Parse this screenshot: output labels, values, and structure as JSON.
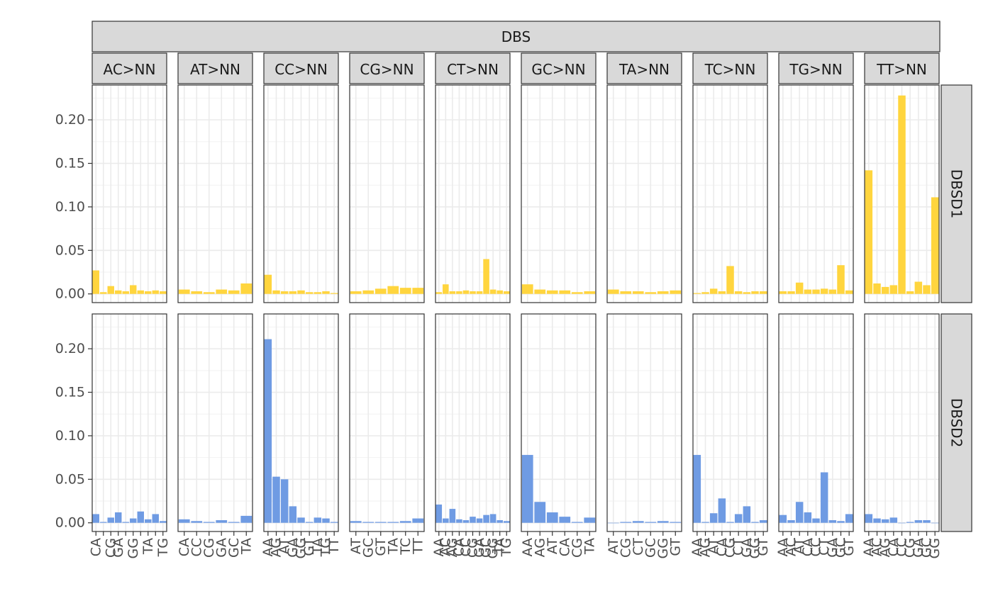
{
  "chart_data": {
    "type": "bar",
    "title": "",
    "xlabel": "",
    "ylabel": "",
    "ylim": [
      -0.01,
      0.24
    ],
    "y_ticks": [
      "0.00",
      "0.05",
      "0.10",
      "0.15",
      "0.20"
    ],
    "y_tick_values": [
      0,
      0.05,
      0.1,
      0.15,
      0.2
    ],
    "top_strip": "DBS",
    "grid": true,
    "colors": {
      "DBSD1": "#FFD53E",
      "DBSD2": "#6F9BE3"
    },
    "groups": [
      {
        "label": "AC>NN",
        "categories": [
          "CA",
          "CC",
          "CG",
          "GA",
          "GC",
          "GG",
          "GT",
          "TA",
          "TC",
          "TG"
        ],
        "x_tick_labels": [
          "CA",
          "CG",
          "GA",
          "GG",
          "TA",
          "TG"
        ]
      },
      {
        "label": "AT>NN",
        "categories": [
          "CA",
          "CC",
          "CG",
          "GA",
          "GC",
          "TA"
        ],
        "x_tick_labels": [
          "CA",
          "CC",
          "CG",
          "GA",
          "GC",
          "TA"
        ]
      },
      {
        "label": "CC>NN",
        "categories": [
          "AA",
          "AG",
          "AT",
          "GA",
          "GG",
          "GT",
          "TA",
          "TG",
          "TT"
        ],
        "x_tick_labels": [
          "AA",
          "AG",
          "AT",
          "GA",
          "GG",
          "GT",
          "TA",
          "TG",
          "TT"
        ]
      },
      {
        "label": "CG>NN",
        "categories": [
          "AT",
          "GC",
          "GT",
          "TA",
          "TC",
          "TT"
        ],
        "x_tick_labels": [
          "AT",
          "GC",
          "GT",
          "TA",
          "TC",
          "TT"
        ]
      },
      {
        "label": "CT>NN",
        "categories": [
          "AA",
          "AC",
          "AG",
          "CA",
          "CC",
          "CG",
          "GA",
          "GC",
          "GG",
          "TA",
          "TG"
        ],
        "x_tick_labels": [
          "AA",
          "AC",
          "AG",
          "CA",
          "CC",
          "CG",
          "GA",
          "GC",
          "GG",
          "TA",
          "TG"
        ]
      },
      {
        "label": "GC>NN",
        "categories": [
          "AA",
          "AG",
          "AT",
          "CA",
          "CG",
          "TA"
        ],
        "x_tick_labels": [
          "AA",
          "AG",
          "AT",
          "CA",
          "CG",
          "TA"
        ]
      },
      {
        "label": "TA>NN",
        "categories": [
          "AT",
          "CG",
          "CT",
          "GC",
          "GG",
          "GT"
        ],
        "x_tick_labels": [
          "AT",
          "CG",
          "CT",
          "GC",
          "GG",
          "GT"
        ]
      },
      {
        "label": "TC>NN",
        "categories": [
          "AA",
          "AG",
          "AT",
          "CA",
          "CG",
          "CT",
          "GA",
          "GG",
          "GT"
        ],
        "x_tick_labels": [
          "AA",
          "AG",
          "AT",
          "CA",
          "CG",
          "CT",
          "GA",
          "GG",
          "GT"
        ]
      },
      {
        "label": "TG>NN",
        "categories": [
          "AA",
          "AC",
          "AT",
          "CA",
          "CC",
          "CT",
          "GA",
          "GC",
          "GT"
        ],
        "x_tick_labels": [
          "AA",
          "AC",
          "AT",
          "CA",
          "CC",
          "CT",
          "GA",
          "GC",
          "GT"
        ]
      },
      {
        "label": "TT>NN",
        "categories": [
          "AA",
          "AC",
          "AG",
          "CA",
          "CC",
          "CG",
          "GA",
          "GC",
          "GG"
        ],
        "x_tick_labels": [
          "AA",
          "AC",
          "AG",
          "CA",
          "CC",
          "CG",
          "GA",
          "GC",
          "GG"
        ]
      }
    ],
    "series": [
      {
        "name": "DBSD1",
        "values": [
          [
            0.027,
            0.002,
            0.009,
            0.004,
            0.003,
            0.01,
            0.004,
            0.003,
            0.004,
            0.003
          ],
          [
            0.005,
            0.003,
            0.002,
            0.005,
            0.004,
            0.012
          ],
          [
            0.022,
            0.004,
            0.003,
            0.003,
            0.004,
            0.002,
            0.002,
            0.003,
            0.001
          ],
          [
            0.003,
            0.004,
            0.006,
            0.009,
            0.007,
            0.007
          ],
          [
            0.002,
            0.011,
            0.003,
            0.003,
            0.004,
            0.003,
            0.003,
            0.04,
            0.005,
            0.004,
            0.003
          ],
          [
            0.011,
            0.005,
            0.004,
            0.004,
            0.002,
            0.003
          ],
          [
            0.005,
            0.003,
            0.003,
            0.002,
            0.003,
            0.004
          ],
          [
            0.001,
            0.002,
            0.006,
            0.003,
            0.032,
            0.003,
            0.002,
            0.003,
            0.003
          ],
          [
            0.003,
            0.003,
            0.013,
            0.005,
            0.005,
            0.006,
            0.005,
            0.033,
            0.004
          ],
          [
            0.142,
            0.012,
            0.008,
            0.01,
            0.228,
            0.003,
            0.014,
            0.01,
            0.111
          ]
        ]
      },
      {
        "name": "DBSD2",
        "values": [
          [
            0.01,
            0.001,
            0.006,
            0.012,
            0.001,
            0.005,
            0.013,
            0.004,
            0.01,
            0.002
          ],
          [
            0.004,
            0.002,
            0.001,
            0.003,
            0.001,
            0.008
          ],
          [
            0.211,
            0.053,
            0.05,
            0.019,
            0.006,
            0.001,
            0.006,
            0.005,
            0.001
          ],
          [
            0.002,
            0.001,
            0.001,
            0.001,
            0.002,
            0.005
          ],
          [
            0.021,
            0.005,
            0.016,
            0.004,
            0.003,
            0.007,
            0.005,
            0.009,
            0.01,
            0.003,
            0.002
          ],
          [
            0.078,
            0.024,
            0.012,
            0.007,
            0.001,
            0.006
          ],
          [
            0.0,
            0.001,
            0.002,
            0.001,
            0.002,
            0.001
          ],
          [
            0.078,
            0.001,
            0.011,
            0.028,
            0.001,
            0.01,
            0.019,
            0.001,
            0.003
          ],
          [
            0.009,
            0.003,
            0.024,
            0.012,
            0.005,
            0.058,
            0.003,
            0.002,
            0.01
          ],
          [
            0.01,
            0.005,
            0.004,
            0.006,
            0.0,
            0.001,
            0.003,
            0.003,
            0.0
          ]
        ]
      }
    ]
  }
}
